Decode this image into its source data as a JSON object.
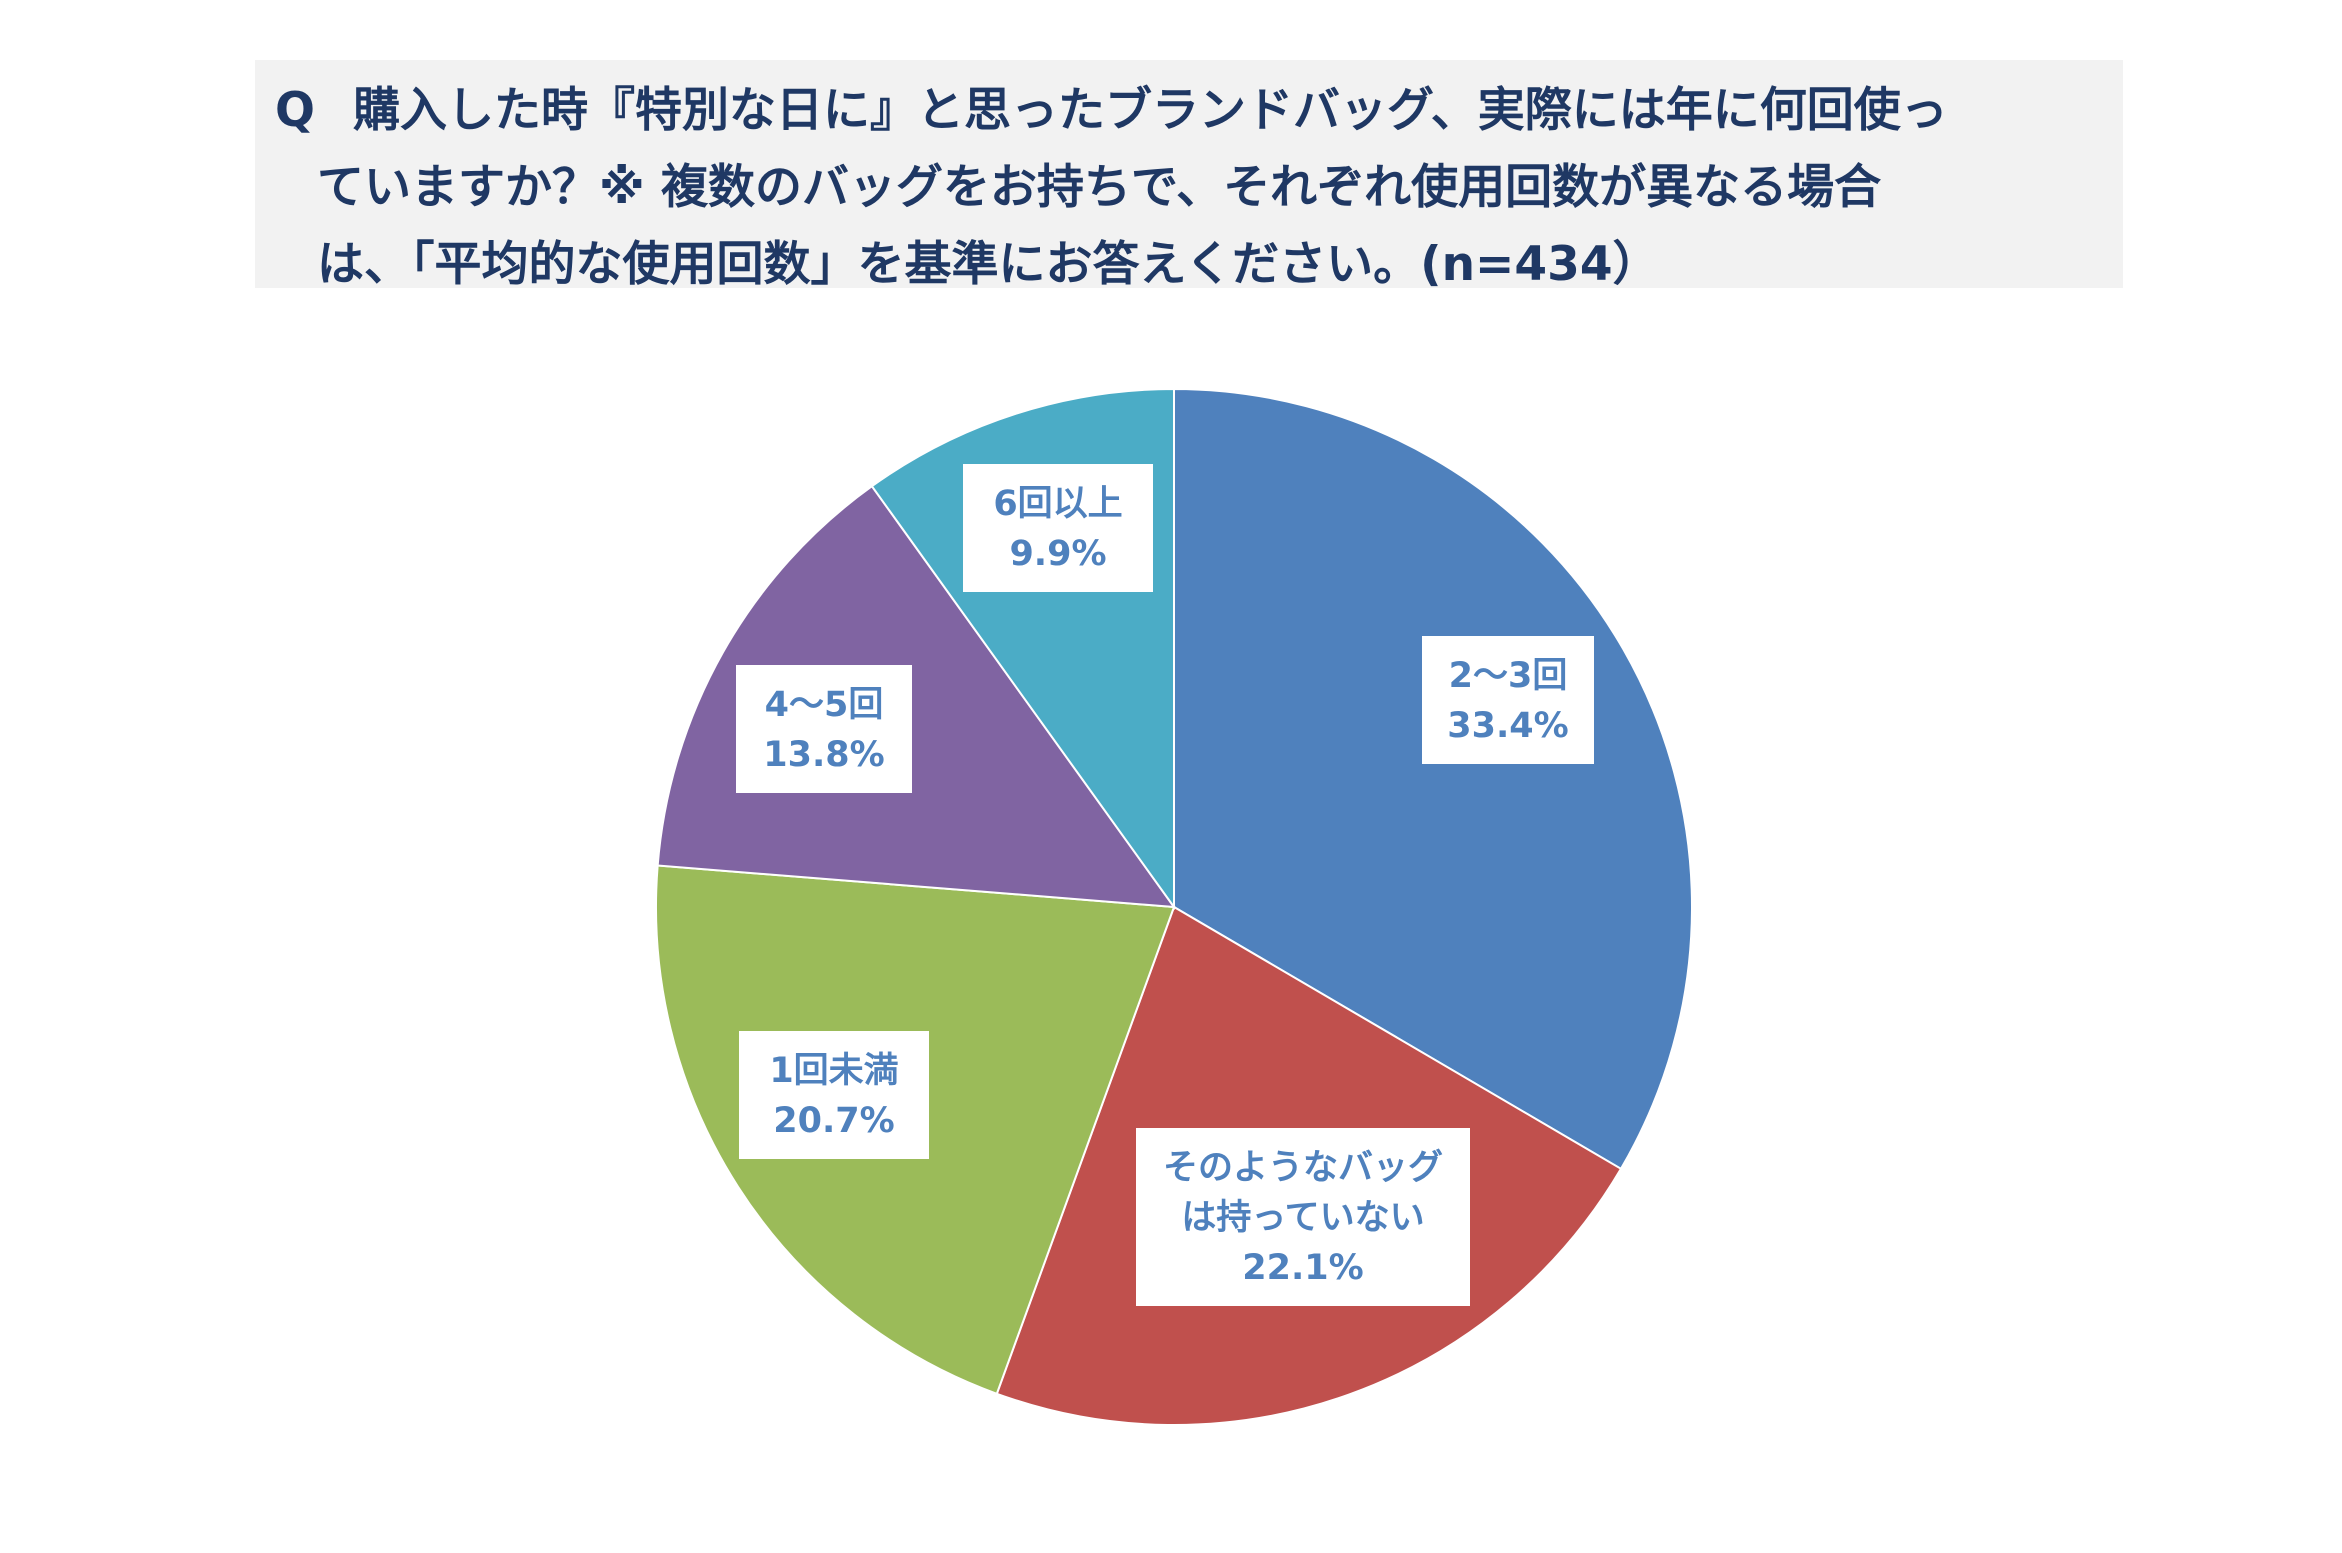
{
  "question": {
    "lines": [
      "購入した時『特別な日に』と思ったブランドバッグ、実際には年に何回使っ",
      "ていますか？※ 複数のバッグをお持ちで、それぞれ使用回数が異なる場合",
      "は、「平均的な使用回数」を基準にお答えください。(n=434）"
    ],
    "q_mark": "Q"
  },
  "chart_data": {
    "type": "pie",
    "start_angle_deg": 0,
    "direction": "clockwise",
    "label_color": "#4f81bd",
    "slices": [
      {
        "label_lines": [
          "2〜3回"
        ],
        "value_label": "33.4%",
        "value": 33.4,
        "color": "#4f81bd"
      },
      {
        "label_lines": [
          "そのようなバッグ",
          "は持っていない"
        ],
        "value_label": "22.1%",
        "value": 22.1,
        "color": "#c0504d"
      },
      {
        "label_lines": [
          "1回未満"
        ],
        "value_label": "20.7%",
        "value": 20.7,
        "color": "#9bbb59"
      },
      {
        "label_lines": [
          "4〜5回"
        ],
        "value_label": "13.8%",
        "value": 13.8,
        "color": "#8064a2"
      },
      {
        "label_lines": [
          "6回以上"
        ],
        "value_label": "9.9%",
        "value": 9.9,
        "color": "#4bacc6"
      }
    ]
  }
}
